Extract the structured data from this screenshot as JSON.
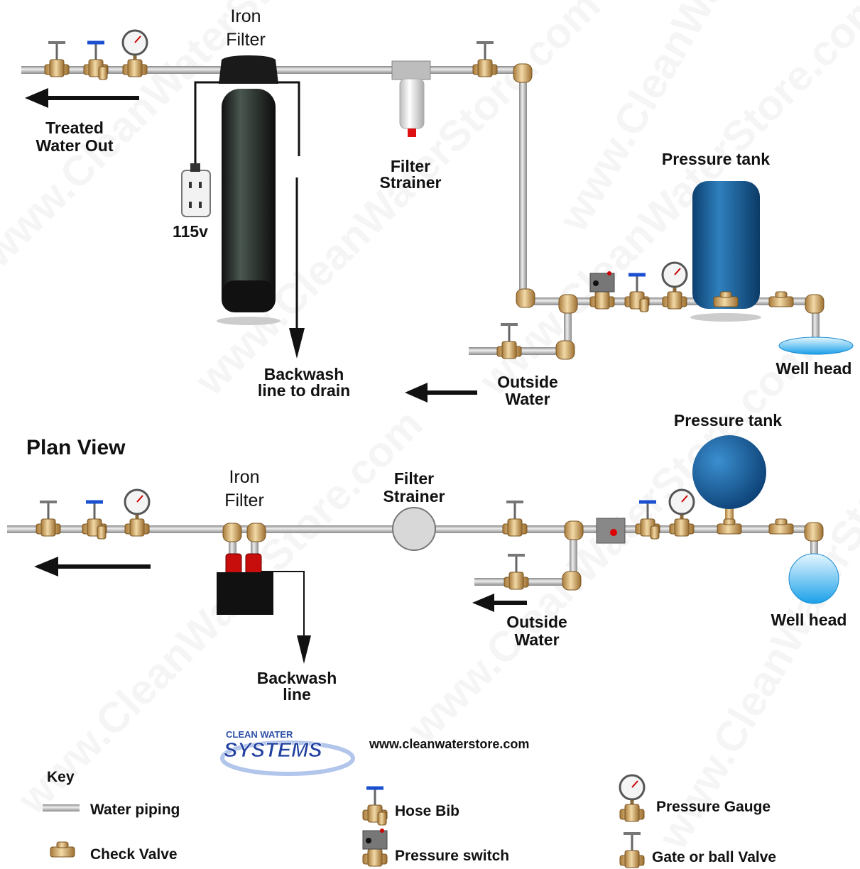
{
  "elevation": {
    "iron_filter": [
      "Iron",
      "Filter"
    ],
    "treated_water_out": [
      "Treated",
      "Water Out"
    ],
    "outlet": "115v",
    "filter_strainer": [
      "Filter",
      "Strainer"
    ],
    "pressure_tank": "Pressure tank",
    "well_head": "Well head",
    "outside_water": [
      "Outside",
      "Water"
    ],
    "backwash": [
      "Backwash",
      "line to drain"
    ]
  },
  "plan": {
    "title": "Plan View",
    "iron_filter": [
      "Iron",
      "Filter"
    ],
    "filter_strainer": [
      "Filter",
      "Strainer"
    ],
    "pressure_tank": "Pressure tank",
    "well_head": "Well head",
    "outside_water": [
      "Outside",
      "Water"
    ],
    "backwash": [
      "Backwash",
      "line"
    ]
  },
  "logo": {
    "line1": "CLEAN WATER",
    "line2": "SYSTEMS",
    "url": "www.cleanwaterstore.com"
  },
  "key": {
    "title": "Key",
    "items": [
      "Water piping",
      "Check Valve",
      "Hose Bib",
      "Pressure switch",
      "Pressure Gauge",
      "Gate or ball Valve"
    ]
  },
  "watermark": "www.CleanWaterStore.com"
}
